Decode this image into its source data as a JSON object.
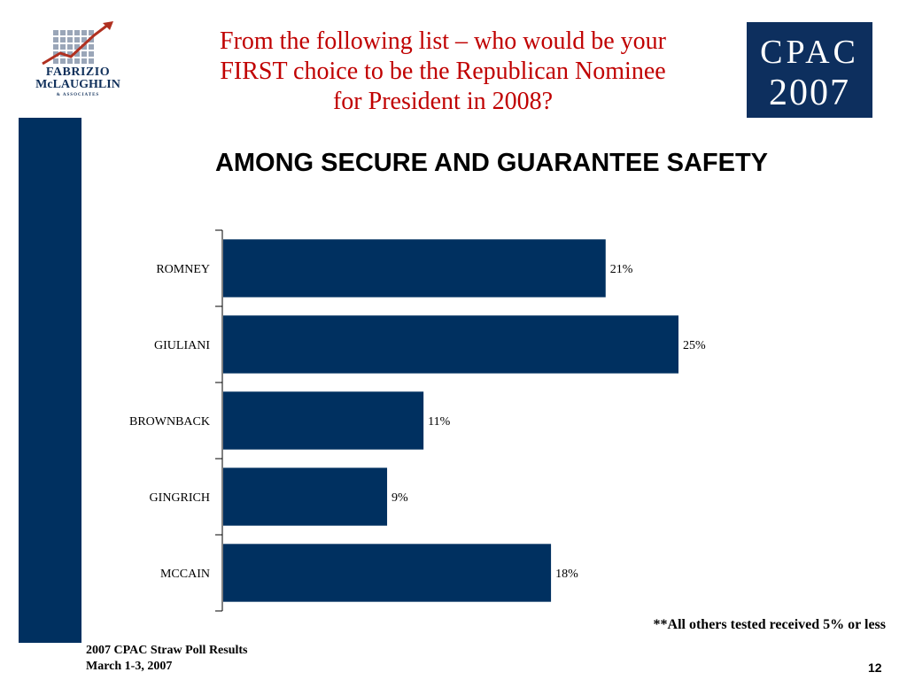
{
  "header": {
    "title_lines": [
      "From the following list – who would be your",
      "FIRST choice to be the Republican Nominee",
      "for President in 2008?"
    ],
    "logo_left": {
      "line1": "FABRIZIO",
      "line2": "McLAUGHLIN",
      "line3": "& ASSOCIATES"
    },
    "logo_right": {
      "line1": "CPAC",
      "line2": "2007"
    }
  },
  "chart_data": {
    "type": "bar",
    "orientation": "horizontal",
    "title": "AMONG SECURE AND GUARANTEE SAFETY",
    "categories": [
      "ROMNEY",
      "GIULIANI",
      "BROWNBACK",
      "GINGRICH",
      "MCCAIN"
    ],
    "values": [
      21,
      25,
      11,
      9,
      18
    ],
    "data_labels": [
      "21%",
      "25%",
      "11%",
      "9%",
      "18%"
    ],
    "xlim": [
      0,
      25
    ],
    "bar_color": "#003060",
    "grid": false
  },
  "footnote": "**All others tested received 5% or less",
  "footer": {
    "line1": "2007 CPAC Straw Poll Results",
    "line2": "March 1-3, 2007",
    "page": "12"
  },
  "colors": {
    "navy": "#003060",
    "title_red": "#c00000"
  }
}
